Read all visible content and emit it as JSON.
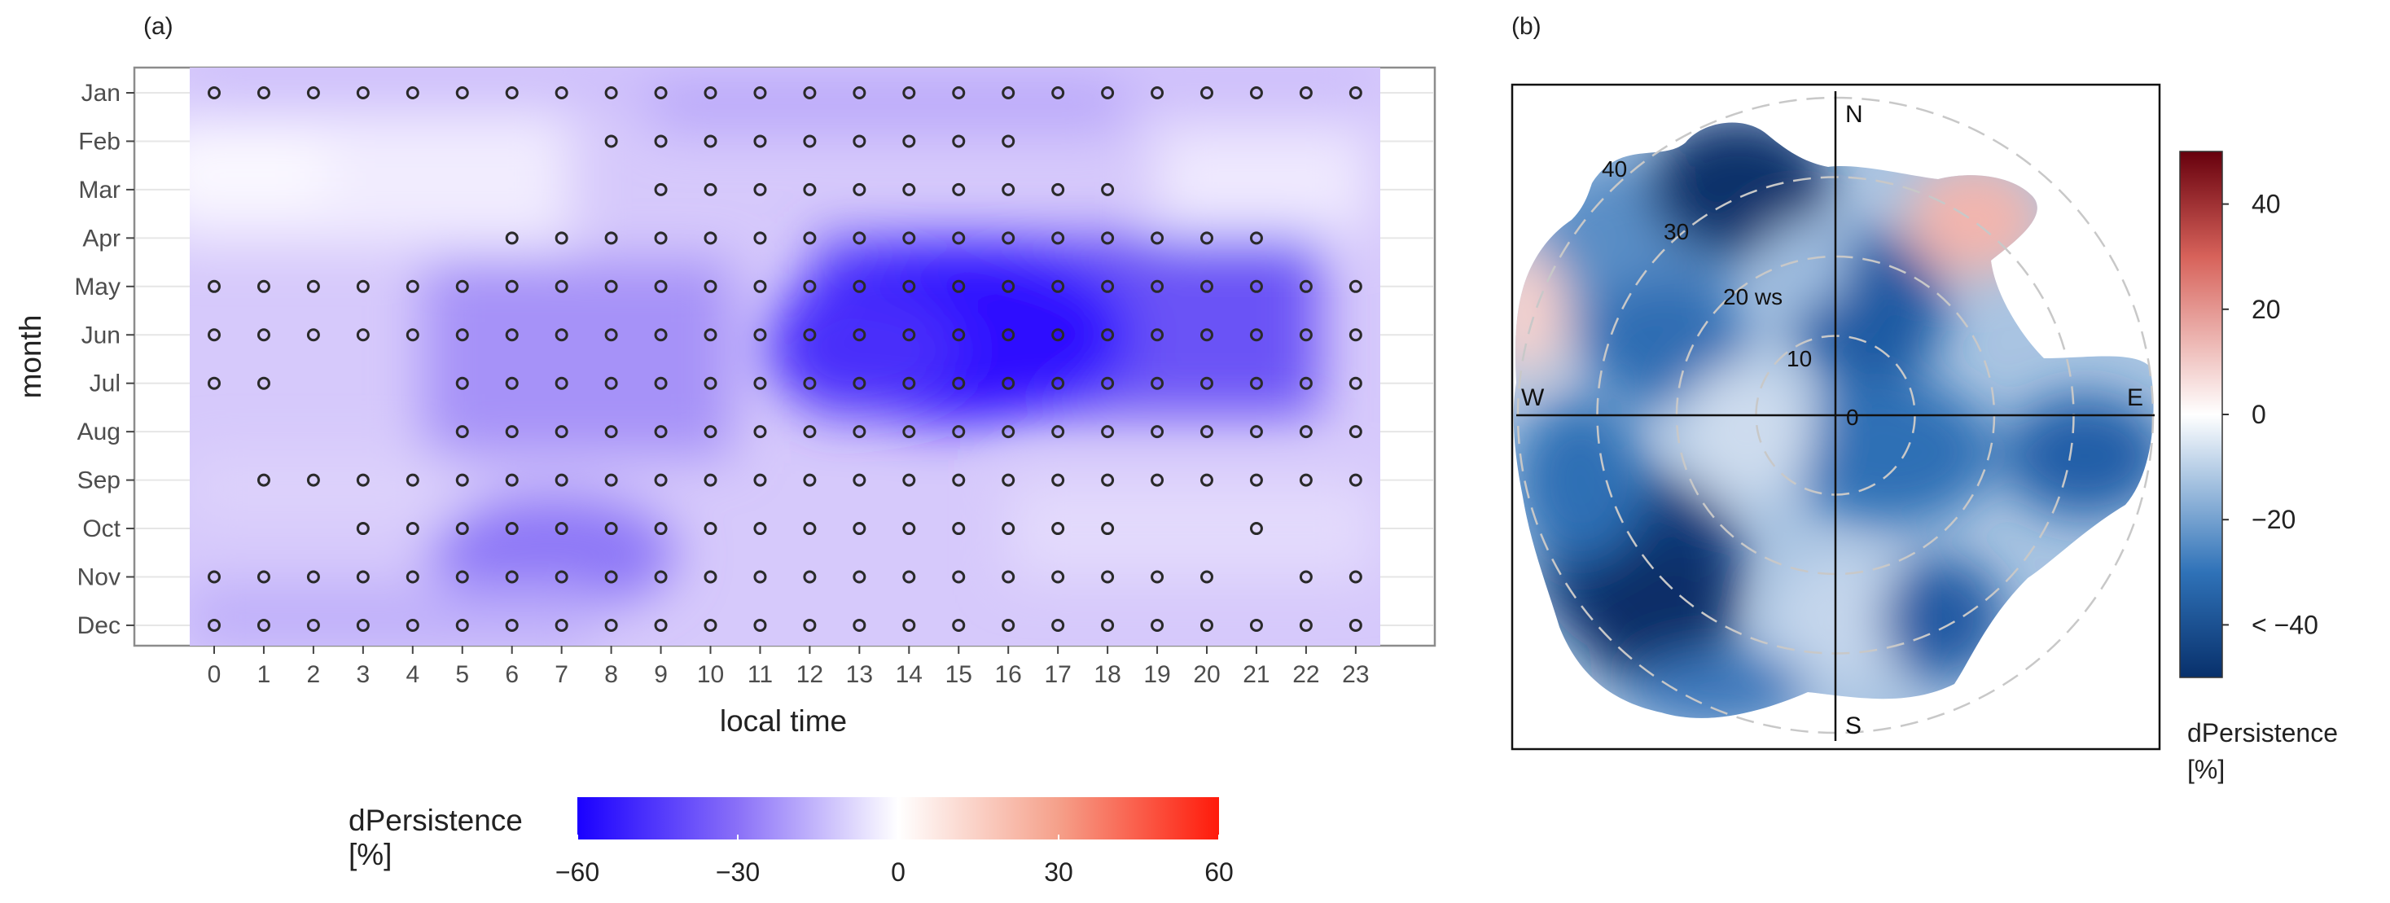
{
  "chart_data": [
    {
      "type": "heatmap",
      "panel_label": "(a)",
      "xlabel": "local time",
      "ylabel": "month",
      "x_ticks": [
        "0",
        "1",
        "2",
        "3",
        "4",
        "5",
        "6",
        "7",
        "8",
        "9",
        "10",
        "11",
        "12",
        "13",
        "14",
        "15",
        "16",
        "17",
        "18",
        "19",
        "20",
        "21",
        "22",
        "23"
      ],
      "y_ticks": [
        "Jan",
        "Feb",
        "Mar",
        "Apr",
        "May",
        "Jun",
        "Jul",
        "Aug",
        "Sep",
        "Oct",
        "Nov",
        "Dec"
      ],
      "significant_hours_by_month": [
        [
          0,
          1,
          2,
          3,
          4,
          5,
          6,
          7,
          8,
          9,
          10,
          11,
          12,
          13,
          14,
          15,
          16,
          17,
          18,
          19,
          20,
          21,
          22,
          23
        ],
        [
          8,
          9,
          10,
          11,
          12,
          13,
          14,
          15,
          16
        ],
        [
          9,
          10,
          11,
          12,
          13,
          14,
          15,
          16,
          17,
          18
        ],
        [
          6,
          7,
          8,
          9,
          10,
          11,
          12,
          13,
          14,
          15,
          16,
          17,
          18,
          19,
          20,
          21
        ],
        [
          0,
          1,
          2,
          3,
          4,
          5,
          6,
          7,
          8,
          9,
          10,
          11,
          12,
          13,
          14,
          15,
          16,
          17,
          18,
          19,
          20,
          21,
          22,
          23
        ],
        [
          0,
          1,
          2,
          3,
          4,
          5,
          6,
          7,
          8,
          9,
          10,
          11,
          12,
          13,
          14,
          15,
          16,
          17,
          18,
          19,
          20,
          21,
          22,
          23
        ],
        [
          0,
          1,
          5,
          6,
          7,
          8,
          9,
          10,
          11,
          12,
          13,
          14,
          15,
          16,
          17,
          18,
          19,
          20,
          21,
          22,
          23
        ],
        [
          5,
          6,
          7,
          8,
          9,
          10,
          11,
          12,
          13,
          14,
          15,
          16,
          17,
          18,
          19,
          20,
          21,
          22,
          23
        ],
        [
          1,
          2,
          3,
          4,
          5,
          6,
          7,
          8,
          9,
          10,
          11,
          12,
          13,
          14,
          15,
          16,
          17,
          18,
          19,
          20,
          21,
          22,
          23
        ],
        [
          3,
          4,
          5,
          6,
          7,
          8,
          9,
          10,
          11,
          12,
          13,
          14,
          15,
          16,
          17,
          18,
          21
        ],
        [
          0,
          1,
          2,
          3,
          4,
          5,
          6,
          7,
          8,
          9,
          10,
          11,
          12,
          13,
          14,
          15,
          16,
          17,
          18,
          19,
          20,
          22,
          23
        ],
        [
          0,
          1,
          2,
          3,
          4,
          5,
          6,
          7,
          8,
          9,
          10,
          11,
          12,
          13,
          14,
          15,
          16,
          17,
          18,
          19,
          20,
          21,
          22,
          23
        ]
      ],
      "colorbar": {
        "title": "dPersistence",
        "unit": "[%]",
        "range": [
          -60,
          60
        ],
        "ticks": [
          "−60",
          "−30",
          "0",
          "30",
          "60"
        ],
        "low_color": "#1a00ff",
        "mid_color": "#ffffff",
        "high_color": "#ff1a0a"
      }
    },
    {
      "type": "polar",
      "panel_label": "(b)",
      "directions": [
        "N",
        "S",
        "W",
        "E"
      ],
      "radial_ticks": [
        "10",
        "20 ws",
        "30",
        "40",
        "0"
      ],
      "radial_values": [
        10,
        20,
        30,
        40
      ],
      "colorbar": {
        "title": "dPersistence",
        "unit": "[%]",
        "range": [
          -50,
          50
        ],
        "ticks": [
          "40",
          "20",
          "0",
          "−20",
          "< −40"
        ],
        "low_color": "#08306b",
        "mid_color": "#ffffff",
        "high_color": "#67000d"
      }
    }
  ]
}
